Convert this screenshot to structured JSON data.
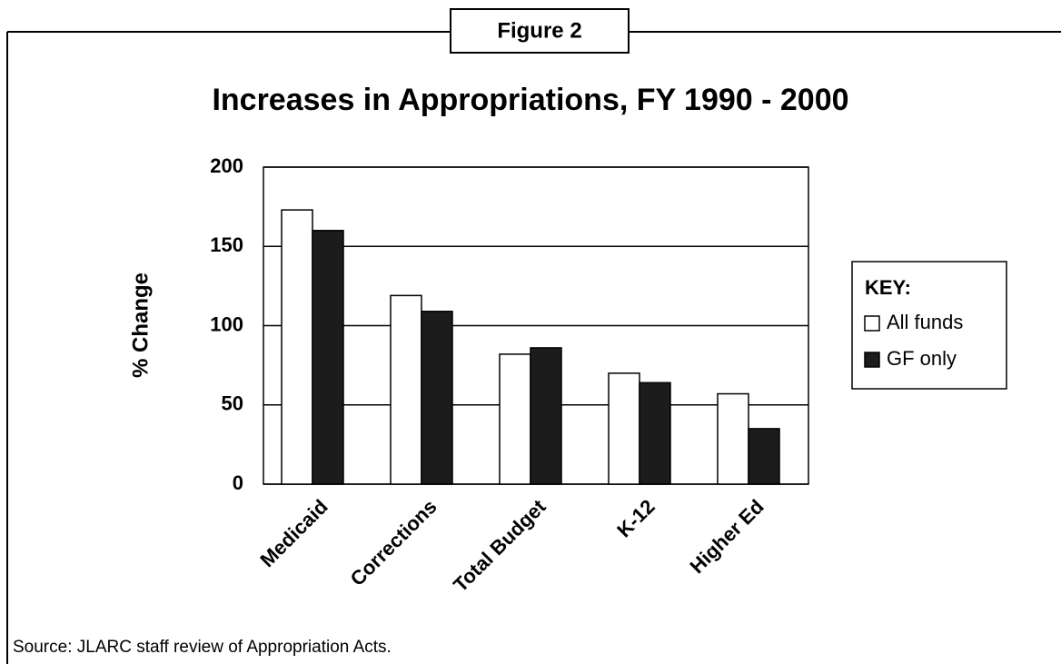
{
  "chart_data": {
    "type": "bar",
    "figure_label": "Figure 2",
    "title": "Increases in Appropriations, FY 1990 - 2000",
    "y_label": "% Change",
    "categories": [
      "Medicaid",
      "Corrections",
      "Total Budget",
      "K-12",
      "Higher Ed"
    ],
    "series": [
      {
        "name": "All funds",
        "color": "#ffffff",
        "values": [
          173,
          119,
          82,
          70,
          57
        ]
      },
      {
        "name": "GF only",
        "color": "#1c1c1c",
        "values": [
          160,
          109,
          86,
          64,
          35
        ]
      }
    ],
    "ylim": [
      0,
      200
    ],
    "yticks": [
      0,
      50,
      100,
      150,
      200
    ],
    "grid": true,
    "legend_title": "KEY:",
    "legend": "right",
    "source": "Source: JLARC staff review of Appropriation Acts."
  }
}
